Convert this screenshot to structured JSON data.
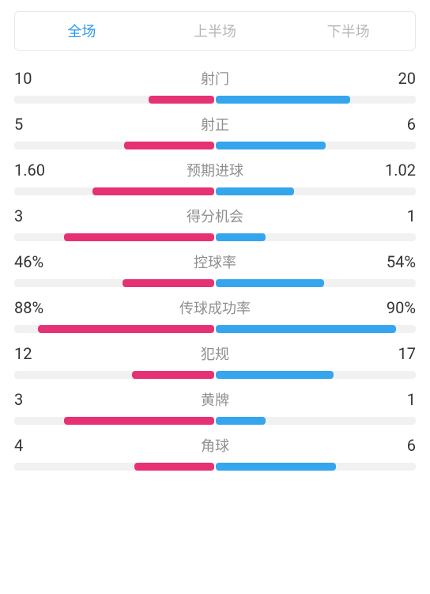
{
  "colors": {
    "home": "#e63174",
    "away": "#35a5ed",
    "track": "#f1f1f1",
    "tab_active": "#2d9cf0",
    "tab_inactive": "#b7b7b7",
    "stat_label_color": "#8f8f8f",
    "stat_value_color": "#333333"
  },
  "tabs": [
    {
      "id": "full",
      "label": "全场",
      "active": true
    },
    {
      "id": "first",
      "label": "上半场",
      "active": false
    },
    {
      "id": "second",
      "label": "下半场",
      "active": false
    }
  ],
  "stats": [
    {
      "label": "射门",
      "home_text": "10",
      "away_text": "20",
      "home_pct": 33,
      "away_pct": 67
    },
    {
      "label": "射正",
      "home_text": "5",
      "away_text": "6",
      "home_pct": 45,
      "away_pct": 55
    },
    {
      "label": "预期进球",
      "home_text": "1.60",
      "away_text": "1.02",
      "home_pct": 61,
      "away_pct": 39
    },
    {
      "label": "得分机会",
      "home_text": "3",
      "away_text": "1",
      "home_pct": 75,
      "away_pct": 25
    },
    {
      "label": "控球率",
      "home_text": "46%",
      "away_text": "54%",
      "home_pct": 46,
      "away_pct": 54
    },
    {
      "label": "传球成功率",
      "home_text": "88%",
      "away_text": "90%",
      "home_pct": 88,
      "away_pct": 90
    },
    {
      "label": "犯规",
      "home_text": "12",
      "away_text": "17",
      "home_pct": 41,
      "away_pct": 59
    },
    {
      "label": "黄牌",
      "home_text": "3",
      "away_text": "1",
      "home_pct": 75,
      "away_pct": 25
    },
    {
      "label": "角球",
      "home_text": "4",
      "away_text": "6",
      "home_pct": 40,
      "away_pct": 60
    }
  ]
}
